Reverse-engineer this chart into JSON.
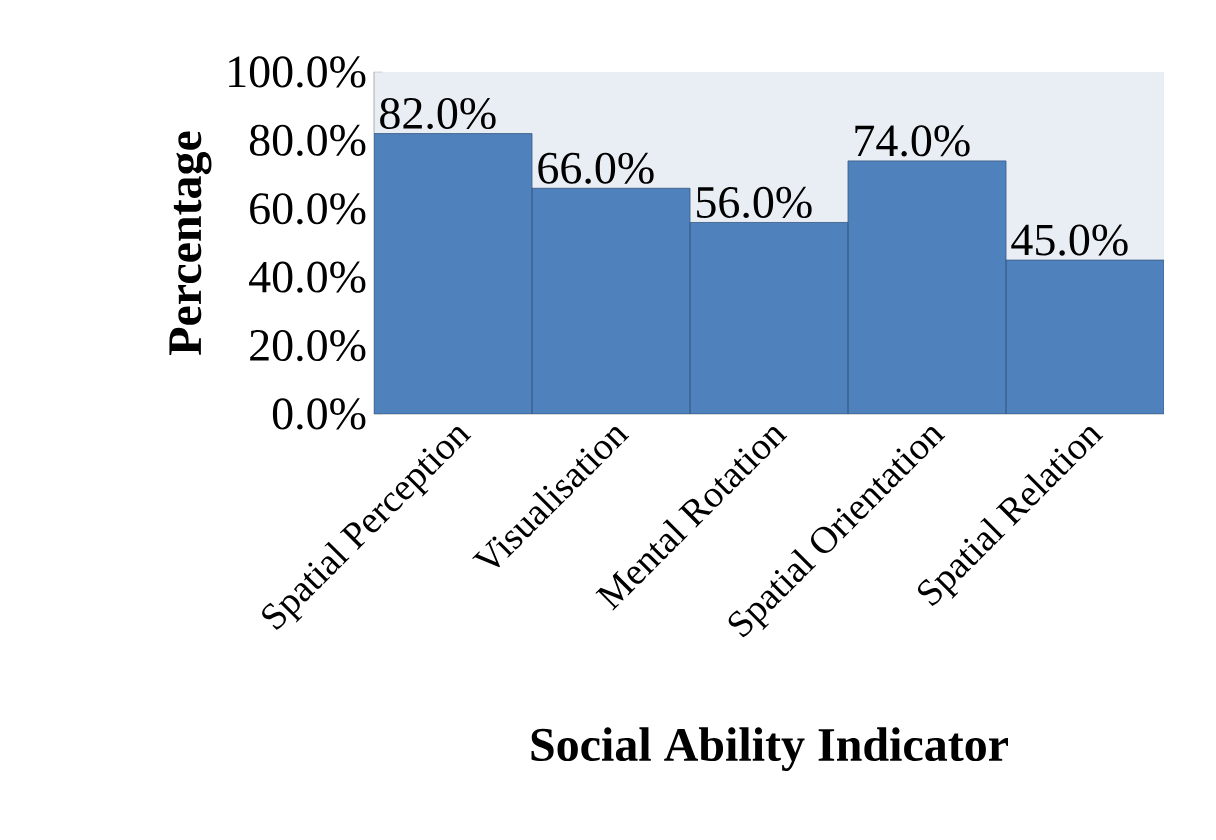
{
  "chart_data": {
    "type": "bar",
    "xlabel": "Social Ability Indicator",
    "ylabel": "Percentage",
    "categories": [
      "Spatial Perception",
      "Visualisation",
      "Mental Rotation",
      "Spatial Orientation",
      "Spatial Relation"
    ],
    "values": [
      82,
      66,
      56,
      74,
      45
    ],
    "value_labels": [
      "82.0%",
      "66.0%",
      "56.0%",
      "74.0%",
      "45.0%"
    ],
    "color": "#4f81bd",
    "ylim": [
      0,
      100
    ],
    "yticks": [
      {
        "value": 0,
        "label": "0.0%"
      },
      {
        "value": 20,
        "label": "20.0%"
      },
      {
        "value": 40,
        "label": "40.0%"
      },
      {
        "value": 60,
        "label": "60.0%"
      },
      {
        "value": 80,
        "label": "80.0%"
      },
      {
        "value": 100,
        "label": "100.0%"
      }
    ],
    "grid": false
  }
}
